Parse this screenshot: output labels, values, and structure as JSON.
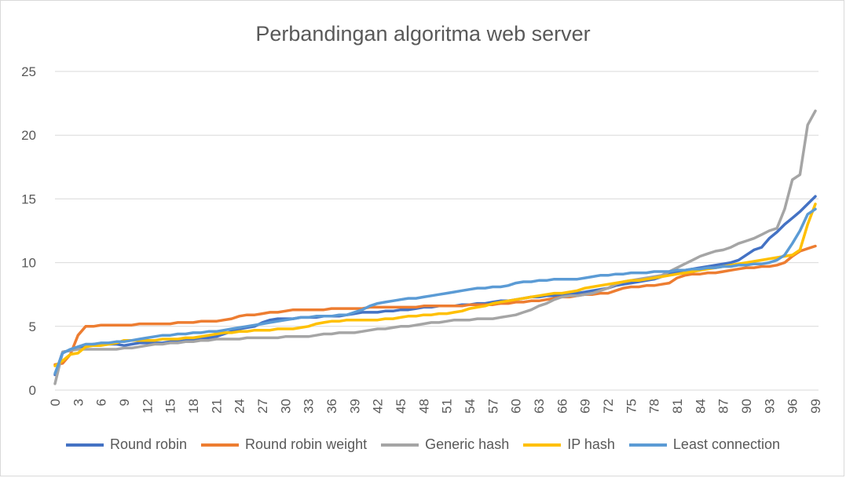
{
  "chart_data": {
    "type": "line",
    "title": "Perbandingan algoritma web server",
    "xlabel": "",
    "ylabel": "",
    "ylim": [
      0,
      25
    ],
    "yticks": [
      0,
      5,
      10,
      15,
      20,
      25
    ],
    "xlim": [
      0,
      99
    ],
    "x_tick_labels": [
      0,
      3,
      6,
      9,
      12,
      15,
      18,
      21,
      24,
      27,
      30,
      33,
      36,
      39,
      42,
      45,
      48,
      51,
      54,
      57,
      60,
      63,
      66,
      69,
      72,
      75,
      78,
      81,
      84,
      87,
      90,
      93,
      96,
      99
    ],
    "grid": "horizontal",
    "legend_position": "bottom",
    "x": [
      0,
      1,
      2,
      3,
      4,
      5,
      6,
      7,
      8,
      9,
      10,
      11,
      12,
      13,
      14,
      15,
      16,
      17,
      18,
      19,
      20,
      21,
      22,
      23,
      24,
      25,
      26,
      27,
      28,
      29,
      30,
      31,
      32,
      33,
      34,
      35,
      36,
      37,
      38,
      39,
      40,
      41,
      42,
      43,
      44,
      45,
      46,
      47,
      48,
      49,
      50,
      51,
      52,
      53,
      54,
      55,
      56,
      57,
      58,
      59,
      60,
      61,
      62,
      63,
      64,
      65,
      66,
      67,
      68,
      69,
      70,
      71,
      72,
      73,
      74,
      75,
      76,
      77,
      78,
      79,
      80,
      81,
      82,
      83,
      84,
      85,
      86,
      87,
      88,
      89,
      90,
      91,
      92,
      93,
      94,
      95,
      96,
      97,
      98,
      99
    ],
    "series": [
      {
        "name": "Round robin",
        "color": "#4472c4",
        "values": [
          1.2,
          3.0,
          3.1,
          3.3,
          3.5,
          3.6,
          3.6,
          3.6,
          3.6,
          3.5,
          3.6,
          3.7,
          3.7,
          3.7,
          3.7,
          3.8,
          3.8,
          3.9,
          3.9,
          4.0,
          4.1,
          4.2,
          4.4,
          4.6,
          4.8,
          4.9,
          5.0,
          5.3,
          5.5,
          5.6,
          5.6,
          5.6,
          5.7,
          5.7,
          5.7,
          5.8,
          5.8,
          5.8,
          5.9,
          6.0,
          6.1,
          6.1,
          6.1,
          6.2,
          6.2,
          6.3,
          6.3,
          6.4,
          6.5,
          6.5,
          6.6,
          6.6,
          6.6,
          6.7,
          6.7,
          6.8,
          6.8,
          6.9,
          7.0,
          7.0,
          7.1,
          7.2,
          7.3,
          7.3,
          7.4,
          7.4,
          7.5,
          7.5,
          7.6,
          7.7,
          7.8,
          7.9,
          8.0,
          8.2,
          8.3,
          8.4,
          8.5,
          8.6,
          8.7,
          8.9,
          9.1,
          9.3,
          9.4,
          9.5,
          9.6,
          9.7,
          9.8,
          9.9,
          10.0,
          10.2,
          10.6,
          11.0,
          11.2,
          11.9,
          12.4,
          13.0,
          13.5,
          14.0,
          14.6,
          15.2
        ]
      },
      {
        "name": "Round robin weight",
        "color": "#ed7d31",
        "values": [
          2.0,
          2.1,
          2.8,
          4.3,
          5.0,
          5.0,
          5.1,
          5.1,
          5.1,
          5.1,
          5.1,
          5.2,
          5.2,
          5.2,
          5.2,
          5.2,
          5.3,
          5.3,
          5.3,
          5.4,
          5.4,
          5.4,
          5.5,
          5.6,
          5.8,
          5.9,
          5.9,
          6.0,
          6.1,
          6.1,
          6.2,
          6.3,
          6.3,
          6.3,
          6.3,
          6.3,
          6.4,
          6.4,
          6.4,
          6.4,
          6.4,
          6.5,
          6.5,
          6.5,
          6.5,
          6.5,
          6.5,
          6.5,
          6.6,
          6.6,
          6.6,
          6.6,
          6.6,
          6.6,
          6.7,
          6.7,
          6.7,
          6.7,
          6.8,
          6.8,
          6.9,
          6.9,
          7.0,
          7.0,
          7.1,
          7.2,
          7.3,
          7.3,
          7.4,
          7.5,
          7.5,
          7.6,
          7.6,
          7.8,
          8.0,
          8.1,
          8.1,
          8.2,
          8.2,
          8.3,
          8.4,
          8.8,
          9.0,
          9.1,
          9.1,
          9.2,
          9.2,
          9.3,
          9.4,
          9.5,
          9.6,
          9.6,
          9.7,
          9.7,
          9.8,
          10.0,
          10.5,
          10.9,
          11.1,
          11.3
        ]
      },
      {
        "name": "Generic hash",
        "color": "#a5a5a5",
        "values": [
          0.5,
          3.0,
          3.1,
          3.2,
          3.2,
          3.2,
          3.2,
          3.2,
          3.2,
          3.3,
          3.3,
          3.4,
          3.5,
          3.6,
          3.6,
          3.7,
          3.7,
          3.8,
          3.8,
          3.9,
          3.9,
          4.0,
          4.0,
          4.0,
          4.0,
          4.1,
          4.1,
          4.1,
          4.1,
          4.1,
          4.2,
          4.2,
          4.2,
          4.2,
          4.3,
          4.4,
          4.4,
          4.5,
          4.5,
          4.5,
          4.6,
          4.7,
          4.8,
          4.8,
          4.9,
          5.0,
          5.0,
          5.1,
          5.2,
          5.3,
          5.3,
          5.4,
          5.5,
          5.5,
          5.5,
          5.6,
          5.6,
          5.6,
          5.7,
          5.8,
          5.9,
          6.1,
          6.3,
          6.6,
          6.8,
          7.1,
          7.3,
          7.4,
          7.4,
          7.5,
          7.6,
          7.8,
          8.0,
          8.3,
          8.5,
          8.6,
          8.7,
          8.8,
          8.9,
          9.0,
          9.3,
          9.6,
          9.9,
          10.2,
          10.5,
          10.7,
          10.9,
          11.0,
          11.2,
          11.5,
          11.7,
          11.9,
          12.2,
          12.5,
          12.7,
          14.2,
          16.5,
          16.9,
          20.8,
          21.9
        ]
      },
      {
        "name": "IP hash",
        "color": "#ffc000",
        "values": [
          1.9,
          2.3,
          2.8,
          2.9,
          3.4,
          3.5,
          3.5,
          3.6,
          3.7,
          3.9,
          3.9,
          3.9,
          3.9,
          3.9,
          4.0,
          4.0,
          4.0,
          4.1,
          4.1,
          4.2,
          4.3,
          4.4,
          4.5,
          4.5,
          4.6,
          4.6,
          4.7,
          4.7,
          4.7,
          4.8,
          4.8,
          4.8,
          4.9,
          5.0,
          5.2,
          5.3,
          5.4,
          5.4,
          5.5,
          5.5,
          5.5,
          5.5,
          5.5,
          5.6,
          5.6,
          5.7,
          5.8,
          5.8,
          5.9,
          5.9,
          6.0,
          6.0,
          6.1,
          6.2,
          6.4,
          6.5,
          6.6,
          6.8,
          6.9,
          7.0,
          7.1,
          7.2,
          7.3,
          7.4,
          7.5,
          7.6,
          7.6,
          7.7,
          7.8,
          8.0,
          8.1,
          8.2,
          8.3,
          8.4,
          8.5,
          8.6,
          8.6,
          8.7,
          8.8,
          8.9,
          9.0,
          9.1,
          9.2,
          9.3,
          9.4,
          9.5,
          9.6,
          9.7,
          9.8,
          9.9,
          10.0,
          10.1,
          10.2,
          10.3,
          10.4,
          10.5,
          10.6,
          11.0,
          13.0,
          14.6
        ]
      },
      {
        "name": "Least connection",
        "color": "#5b9bd5",
        "values": [
          1.3,
          2.9,
          3.2,
          3.4,
          3.6,
          3.6,
          3.7,
          3.7,
          3.8,
          3.8,
          3.9,
          4.0,
          4.1,
          4.2,
          4.3,
          4.3,
          4.4,
          4.4,
          4.5,
          4.5,
          4.6,
          4.6,
          4.7,
          4.8,
          4.9,
          5.0,
          5.1,
          5.2,
          5.3,
          5.4,
          5.5,
          5.6,
          5.7,
          5.7,
          5.8,
          5.8,
          5.8,
          5.9,
          5.9,
          6.1,
          6.3,
          6.6,
          6.8,
          6.9,
          7.0,
          7.1,
          7.2,
          7.2,
          7.3,
          7.4,
          7.5,
          7.6,
          7.7,
          7.8,
          7.9,
          8.0,
          8.0,
          8.1,
          8.1,
          8.2,
          8.4,
          8.5,
          8.5,
          8.6,
          8.6,
          8.7,
          8.7,
          8.7,
          8.7,
          8.8,
          8.9,
          9.0,
          9.0,
          9.1,
          9.1,
          9.2,
          9.2,
          9.2,
          9.3,
          9.3,
          9.3,
          9.4,
          9.4,
          9.5,
          9.5,
          9.6,
          9.6,
          9.7,
          9.7,
          9.8,
          9.8,
          9.9,
          9.9,
          10.0,
          10.2,
          10.6,
          11.5,
          12.5,
          13.8,
          14.2
        ]
      }
    ]
  }
}
